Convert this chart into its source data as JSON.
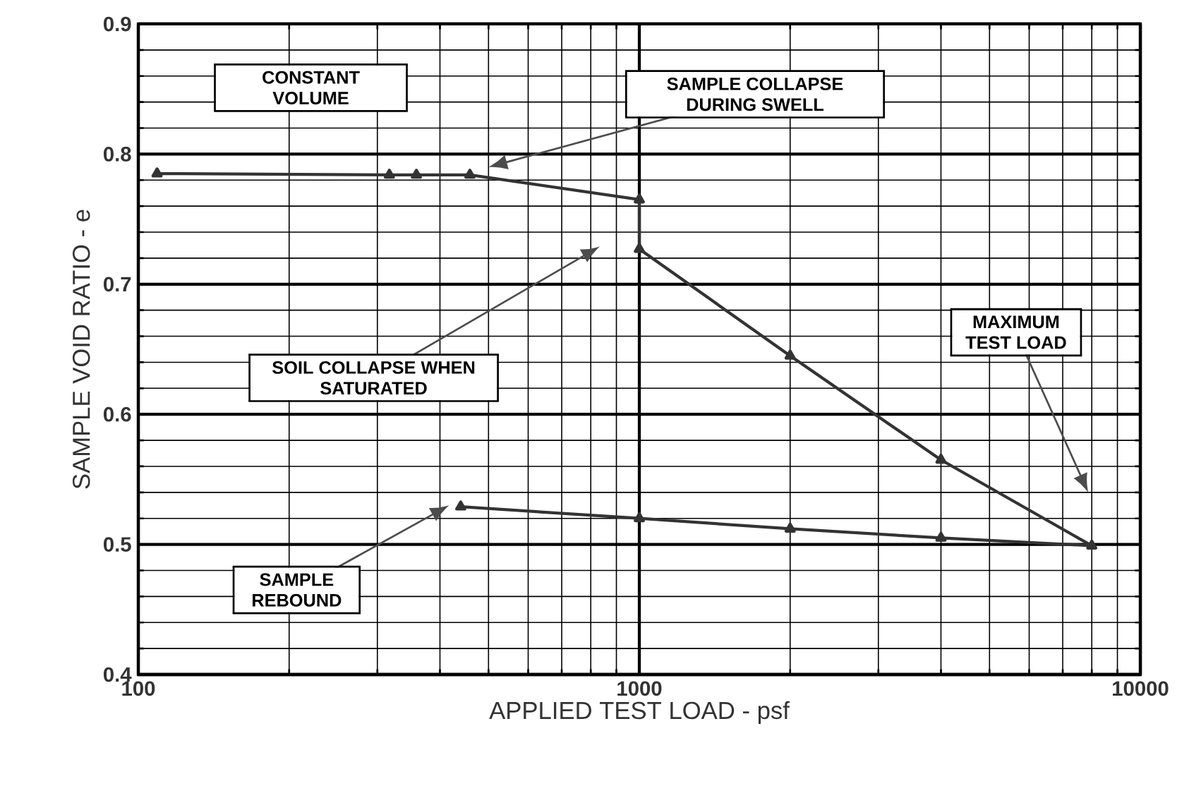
{
  "chart_data": {
    "type": "line",
    "xlabel": "APPLIED TEST LOAD  -  psf",
    "ylabel": "SAMPLE VOID RATIO - e",
    "log": "x",
    "xlim": [
      100,
      10000
    ],
    "ylim": [
      0.4,
      0.9
    ],
    "xticks": [
      100,
      1000,
      10000
    ],
    "yticks": [
      0.4,
      0.5,
      0.6,
      0.7,
      0.8,
      0.9
    ],
    "grid": true,
    "marker": "triangle",
    "line_style": "solid",
    "color": "#333333",
    "x": [
      109,
      317,
      359,
      459,
      1000,
      1000,
      2000,
      4000,
      8000,
      4000,
      2000,
      1000,
      440
    ],
    "values": [
      0.785,
      0.784,
      0.784,
      0.784,
      0.765,
      0.727,
      0.645,
      0.565,
      0.499,
      0.505,
      0.512,
      0.52,
      0.529
    ],
    "annotations": [
      "CONSTANT VOLUME",
      "SAMPLE COLLAPSE DURING SWELL",
      "SOIL COLLAPSE WHEN SATURATED",
      "MAXIMUM TEST LOAD",
      "SAMPLE REBOUND"
    ]
  }
}
